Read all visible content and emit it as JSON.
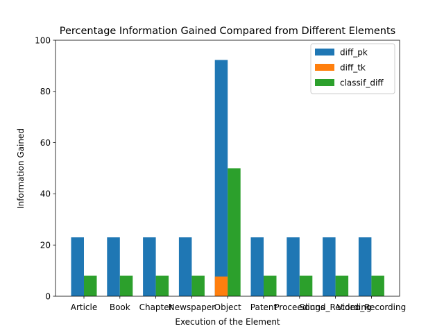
{
  "chart_data": {
    "type": "bar",
    "title": "Percentage Information Gained Compared from Different Elements",
    "xlabel": "Execution of the Element",
    "ylabel": "Information Gained",
    "ylim": [
      0,
      100
    ],
    "yticks": [
      0,
      20,
      40,
      60,
      80,
      100
    ],
    "grid": false,
    "legend_placement": "top-right",
    "categories": [
      "Article",
      "Book",
      "Chapter",
      "Newspaper",
      "Object",
      "Patent",
      "Proceedings",
      "Sound_Recording",
      "Video_Recording"
    ],
    "series": [
      {
        "name": "diff_pk",
        "color": "#1f77b4",
        "values": [
          23,
          23,
          23,
          23,
          92.3,
          23,
          23,
          23,
          23
        ]
      },
      {
        "name": "diff_tk",
        "color": "#ff7f0e",
        "values": [
          0,
          0,
          0,
          0,
          7.7,
          0,
          0,
          0,
          0
        ]
      },
      {
        "name": "classif_diff",
        "color": "#2ca02c",
        "values": [
          8,
          8,
          8,
          8,
          50,
          8,
          8,
          8,
          8
        ]
      }
    ]
  }
}
